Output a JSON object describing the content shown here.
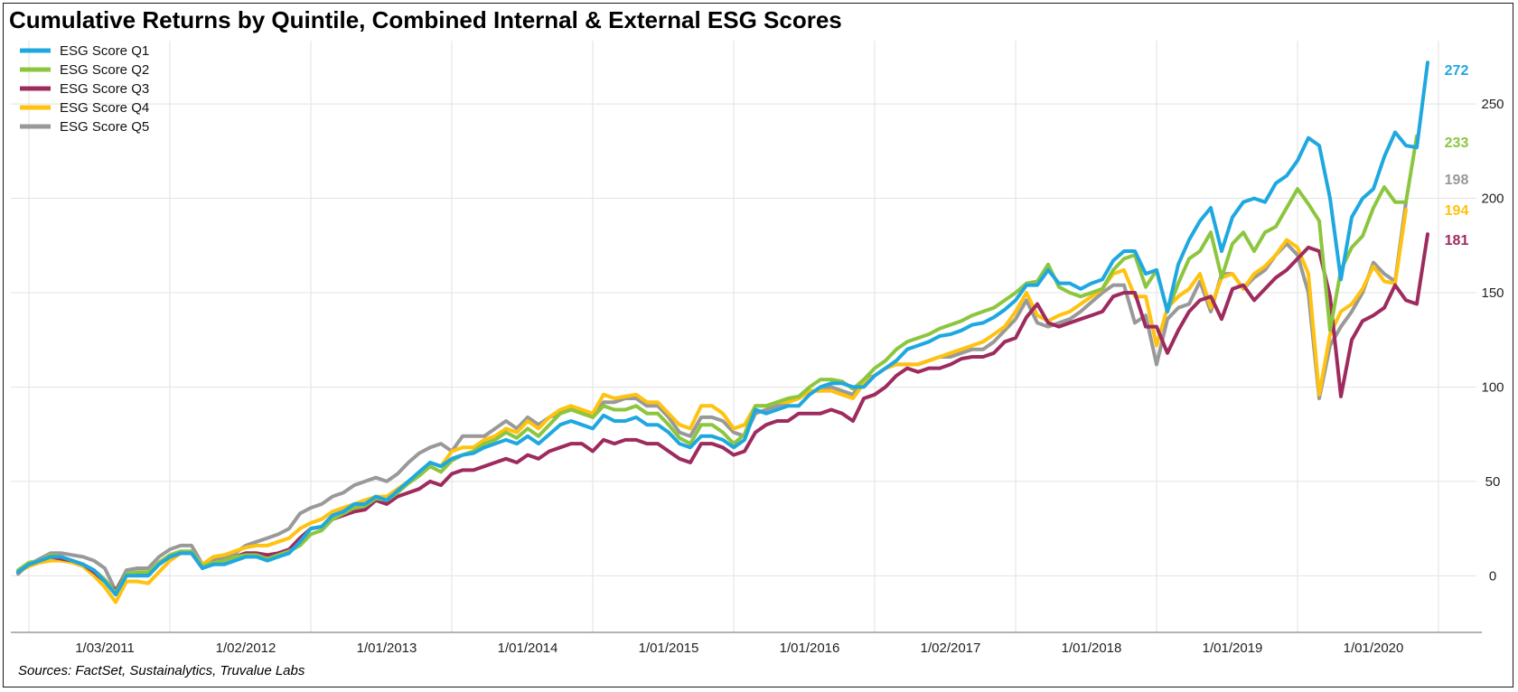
{
  "title": "Cumulative Returns by Quintile, Combined Internal & External ESG Scores",
  "source": "Sources: FactSet, Sustainalytics, Truvalue Labs",
  "chart_data": {
    "type": "line",
    "title": "Cumulative Returns by Quintile, Combined Internal & External ESG Scores",
    "xlabel": "",
    "ylabel": "",
    "ylim": [
      -30,
      285
    ],
    "yticks": [
      "0",
      "50",
      "100",
      "150",
      "200",
      "250"
    ],
    "x_tick_labels": [
      "1/03/2011",
      "1/02/2012",
      "1/01/2013",
      "1/01/2014",
      "1/01/2015",
      "1/01/2016",
      "1/02/2017",
      "1/01/2018",
      "1/01/2019",
      "1/01/2020"
    ],
    "grid": true,
    "legend_position": "top-left",
    "series": [
      {
        "name": "ESG Score Q1",
        "color": "#1fa8e0",
        "end_label": "272",
        "values": [
          2,
          6,
          8,
          10,
          10,
          8,
          6,
          3,
          -3,
          -10,
          0,
          0,
          0,
          6,
          10,
          12,
          12,
          4,
          6,
          6,
          8,
          10,
          10,
          8,
          10,
          12,
          18,
          25,
          26,
          32,
          34,
          38,
          38,
          42,
          40,
          45,
          50,
          55,
          60,
          58,
          62,
          64,
          65,
          68,
          70,
          72,
          70,
          74,
          70,
          75,
          80,
          82,
          80,
          78,
          85,
          82,
          82,
          84,
          80,
          80,
          76,
          70,
          68,
          74,
          74,
          72,
          68,
          72,
          88,
          86,
          88,
          90,
          90,
          96,
          100,
          102,
          102,
          100,
          100,
          106,
          110,
          114,
          120,
          122,
          124,
          127,
          128,
          130,
          133,
          134,
          137,
          141,
          146,
          154,
          154,
          162,
          155,
          155,
          152,
          155,
          157,
          167,
          172,
          172,
          160,
          162,
          140,
          165,
          178,
          188,
          195,
          172,
          190,
          198,
          200,
          198,
          208,
          212,
          220,
          232,
          228,
          200,
          157,
          190,
          200,
          205,
          222,
          235,
          228,
          227,
          272
        ]
      },
      {
        "name": "ESG Score Q2",
        "color": "#8cc63e",
        "end_label": "233",
        "values": [
          3,
          7,
          8,
          11,
          10,
          8,
          6,
          3,
          -2,
          -9,
          1,
          2,
          2,
          7,
          11,
          13,
          13,
          5,
          7,
          8,
          10,
          11,
          11,
          9,
          11,
          13,
          16,
          22,
          24,
          30,
          33,
          36,
          37,
          41,
          40,
          44,
          49,
          53,
          58,
          55,
          61,
          64,
          66,
          70,
          72,
          76,
          73,
          78,
          74,
          80,
          86,
          88,
          86,
          84,
          90,
          88,
          88,
          90,
          86,
          86,
          80,
          73,
          70,
          80,
          80,
          76,
          70,
          75,
          90,
          90,
          92,
          94,
          95,
          100,
          104,
          104,
          103,
          99,
          104,
          110,
          114,
          120,
          124,
          126,
          128,
          131,
          133,
          135,
          138,
          140,
          142,
          146,
          150,
          155,
          156,
          165,
          153,
          150,
          148,
          150,
          152,
          162,
          168,
          170,
          153,
          162,
          140,
          155,
          168,
          172,
          182,
          158,
          176,
          182,
          172,
          182,
          185,
          195,
          205,
          197,
          188,
          130,
          162,
          174,
          180,
          195,
          206,
          198,
          198,
          233
        ]
      },
      {
        "name": "ESG Score Q3",
        "color": "#9e2b5e",
        "end_label": "181",
        "values": [
          2,
          6,
          8,
          10,
          9,
          8,
          6,
          2,
          -3,
          -8,
          1,
          1,
          1,
          7,
          10,
          12,
          12,
          4,
          7,
          8,
          10,
          12,
          12,
          11,
          12,
          14,
          20,
          25,
          26,
          30,
          32,
          34,
          35,
          40,
          38,
          42,
          44,
          46,
          50,
          48,
          54,
          56,
          56,
          58,
          60,
          62,
          60,
          64,
          62,
          66,
          68,
          70,
          70,
          66,
          72,
          70,
          72,
          72,
          70,
          70,
          66,
          62,
          60,
          70,
          70,
          68,
          64,
          66,
          76,
          80,
          82,
          82,
          86,
          86,
          86,
          88,
          86,
          82,
          94,
          96,
          100,
          106,
          110,
          108,
          110,
          110,
          112,
          115,
          116,
          116,
          118,
          124,
          126,
          137,
          144,
          134,
          132,
          134,
          136,
          138,
          140,
          148,
          150,
          150,
          132,
          132,
          118,
          130,
          140,
          146,
          148,
          136,
          152,
          154,
          146,
          152,
          158,
          162,
          168,
          174,
          172,
          148,
          95,
          125,
          135,
          138,
          142,
          154,
          146,
          144,
          181
        ]
      },
      {
        "name": "ESG Score Q4",
        "color": "#ffc20e",
        "end_label": "194",
        "values": [
          2,
          5,
          7,
          8,
          8,
          7,
          5,
          0,
          -6,
          -14,
          -3,
          -3,
          -4,
          2,
          8,
          12,
          12,
          6,
          10,
          11,
          13,
          15,
          16,
          16,
          18,
          20,
          25,
          28,
          30,
          34,
          36,
          38,
          40,
          42,
          42,
          46,
          50,
          54,
          60,
          58,
          66,
          68,
          68,
          72,
          74,
          78,
          76,
          82,
          78,
          84,
          88,
          90,
          88,
          86,
          96,
          94,
          95,
          96,
          92,
          92,
          86,
          80,
          78,
          90,
          90,
          86,
          78,
          80,
          90,
          90,
          92,
          92,
          94,
          98,
          98,
          98,
          96,
          94,
          102,
          106,
          110,
          112,
          112,
          112,
          114,
          116,
          118,
          120,
          122,
          124,
          128,
          132,
          140,
          150,
          138,
          135,
          138,
          140,
          144,
          148,
          152,
          160,
          162,
          148,
          148,
          122,
          142,
          148,
          152,
          160,
          142,
          158,
          160,
          152,
          160,
          164,
          170,
          178,
          174,
          160,
          96,
          128,
          140,
          144,
          152,
          164,
          156,
          155,
          194
        ]
      },
      {
        "name": "ESG Score Q5",
        "color": "#999999",
        "end_label": "198",
        "values": [
          1,
          6,
          9,
          12,
          12,
          11,
          10,
          8,
          4,
          -8,
          3,
          4,
          4,
          10,
          14,
          16,
          16,
          6,
          8,
          10,
          12,
          16,
          18,
          20,
          22,
          25,
          33,
          36,
          38,
          42,
          44,
          48,
          50,
          52,
          50,
          54,
          60,
          65,
          68,
          70,
          66,
          74,
          74,
          74,
          78,
          82,
          78,
          84,
          80,
          84,
          86,
          88,
          88,
          84,
          92,
          92,
          94,
          94,
          90,
          90,
          84,
          76,
          74,
          84,
          84,
          82,
          76,
          74,
          86,
          88,
          90,
          92,
          94,
          98,
          98,
          100,
          98,
          96,
          104,
          106,
          110,
          112,
          112,
          112,
          114,
          116,
          116,
          118,
          120,
          120,
          124,
          130,
          136,
          146,
          134,
          132,
          134,
          136,
          140,
          145,
          150,
          154,
          154,
          134,
          138,
          112,
          136,
          142,
          144,
          156,
          140,
          160,
          160,
          152,
          158,
          162,
          170,
          176,
          170,
          150,
          94,
          122,
          132,
          140,
          150,
          166,
          160,
          156,
          198
        ]
      }
    ]
  }
}
